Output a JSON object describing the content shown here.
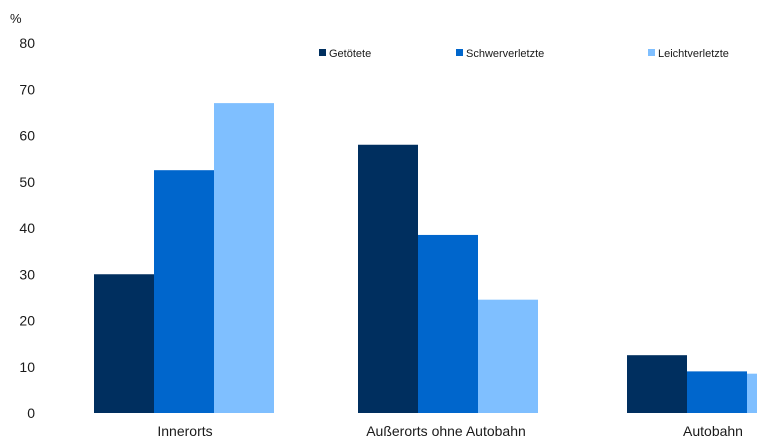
{
  "chart_data": {
    "type": "bar",
    "title": "",
    "xlabel": "",
    "ylabel": "%",
    "ylim": [
      0,
      80
    ],
    "yticks": [
      0,
      10,
      20,
      30,
      40,
      50,
      60,
      70,
      80
    ],
    "grid": false,
    "legend_position": "top-right",
    "categories": [
      "Innerorts",
      "Außerorts ohne Autobahn",
      "Autobahn"
    ],
    "series": [
      {
        "name": "Getötete",
        "color": "#002f5f",
        "values": [
          30,
          58,
          12.5
        ]
      },
      {
        "name": "Schwerverletzte",
        "color": "#0066cc",
        "values": [
          52.5,
          38.5,
          9
        ]
      },
      {
        "name": "Leichtverletzte",
        "color": "#7fbfff",
        "values": [
          67,
          24.5,
          8.5
        ]
      }
    ]
  }
}
